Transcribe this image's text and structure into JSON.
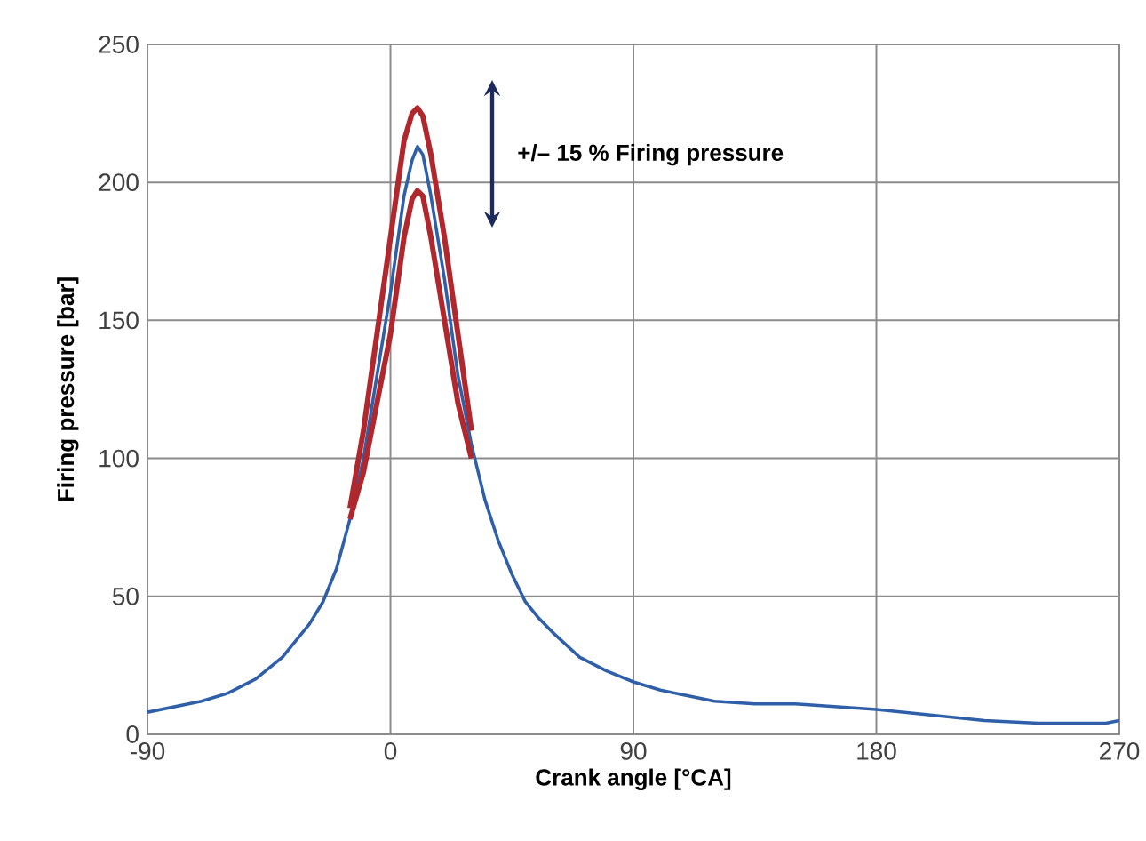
{
  "chart_data": {
    "type": "line",
    "xlabel": "Crank angle [°CA]",
    "ylabel": "Firing pressure [bar]",
    "annotations": [
      "+/– 15 % Firing pressure"
    ],
    "xlim": [
      -90,
      270
    ],
    "ylim": [
      0,
      250
    ],
    "xticks": [
      -90,
      0,
      90,
      180,
      270
    ],
    "yticks": [
      0,
      50,
      100,
      150,
      200,
      250
    ],
    "grid": true,
    "marker": "none",
    "line_style": "solid",
    "series": [
      {
        "color": "#2e5fa8",
        "x": [
          -90,
          -80,
          -70,
          -60,
          -50,
          -40,
          -30,
          -25,
          -20,
          -15,
          -10,
          -5,
          0,
          5,
          8,
          10,
          12,
          15,
          20,
          25,
          30,
          35,
          40,
          45,
          50,
          55,
          60,
          70,
          80,
          90,
          100,
          110,
          120,
          135,
          150,
          165,
          180,
          200,
          220,
          240,
          255,
          265,
          270
        ],
        "values": [
          8,
          10,
          12,
          15,
          20,
          28,
          40,
          48,
          60,
          78,
          100,
          130,
          160,
          195,
          208,
          213,
          210,
          195,
          165,
          130,
          105,
          85,
          70,
          58,
          48,
          42,
          37,
          28,
          23,
          19,
          16,
          14,
          12,
          11,
          11,
          10,
          9,
          7,
          5,
          4,
          4,
          4,
          5
        ]
      },
      {
        "color": "#b0282e",
        "x": [
          -15,
          -10,
          -5,
          0,
          5,
          8,
          10,
          12,
          15,
          20,
          25,
          30
        ],
        "values": [
          82,
          110,
          145,
          180,
          215,
          225,
          227,
          224,
          210,
          180,
          145,
          110
        ]
      },
      {
        "color": "#b0282e",
        "x": [
          -15,
          -10,
          -5,
          0,
          5,
          8,
          10,
          12,
          15,
          20,
          25,
          30
        ],
        "values": [
          78,
          95,
          120,
          145,
          180,
          194,
          197,
          195,
          180,
          150,
          120,
          100
        ]
      }
    ]
  }
}
